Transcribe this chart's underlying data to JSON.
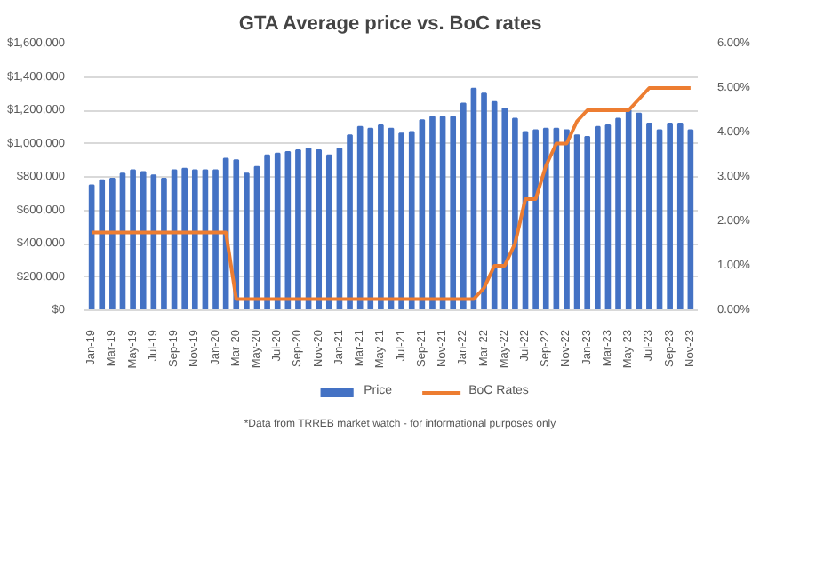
{
  "chart_data": {
    "type": "bar",
    "title": "GTA Average price vs. BoC rates",
    "categories": [
      "Jan-19",
      null,
      "Mar-19",
      null,
      "May-19",
      null,
      "Jul-19",
      null,
      "Sep-19",
      null,
      "Nov-19",
      null,
      "Jan-20",
      null,
      "Mar-20",
      null,
      "May-20",
      null,
      "Jul-20",
      null,
      "Sep-20",
      null,
      "Nov-20",
      null,
      "Jan-21",
      null,
      "Mar-21",
      null,
      "May-21",
      null,
      "Jul-21",
      null,
      "Sep-21",
      null,
      "Nov-21",
      null,
      "Jan-22",
      null,
      "Mar-22",
      null,
      "May-22",
      null,
      "Jul-22",
      null,
      "Sep-22",
      null,
      "Nov-22",
      null,
      "Jan-23",
      null,
      "Mar-23",
      null,
      "May-23",
      null,
      "Jul-23",
      null,
      "Sep-23",
      null,
      "Nov-23"
    ],
    "series": [
      {
        "name": "Price",
        "color": "#4472c4",
        "values": [
          750000,
          780000,
          790000,
          820000,
          840000,
          830000,
          810000,
          790000,
          840000,
          850000,
          840000,
          840000,
          840000,
          910000,
          900000,
          820000,
          860000,
          930000,
          940000,
          950000,
          960000,
          970000,
          960000,
          930000,
          970000,
          1050000,
          1100000,
          1090000,
          1110000,
          1090000,
          1060000,
          1070000,
          1140000,
          1160000,
          1160000,
          1160000,
          1240000,
          1330000,
          1300000,
          1250000,
          1210000,
          1150000,
          1070000,
          1080000,
          1090000,
          1090000,
          1080000,
          1050000,
          1040000,
          1100000,
          1110000,
          1150000,
          1200000,
          1180000,
          1120000,
          1080000,
          1120000,
          1120000,
          1080000
        ]
      },
      {
        "name": "BoC Rates",
        "type": "line",
        "axis": "y2",
        "color": "#ed7d31",
        "values": [
          1.75,
          1.75,
          1.75,
          1.75,
          1.75,
          1.75,
          1.75,
          1.75,
          1.75,
          1.75,
          1.75,
          1.75,
          1.75,
          1.75,
          0.25,
          0.25,
          0.25,
          0.25,
          0.25,
          0.25,
          0.25,
          0.25,
          0.25,
          0.25,
          0.25,
          0.25,
          0.25,
          0.25,
          0.25,
          0.25,
          0.25,
          0.25,
          0.25,
          0.25,
          0.25,
          0.25,
          0.25,
          0.25,
          0.5,
          1.0,
          1.0,
          1.5,
          2.5,
          2.5,
          3.25,
          3.75,
          3.75,
          4.25,
          4.5,
          4.5,
          4.5,
          4.5,
          4.5,
          4.75,
          5.0,
          5.0,
          5.0,
          5.0,
          5.0
        ]
      }
    ],
    "ylim": [
      0,
      1600000
    ],
    "yticks": [
      {
        "value": 0,
        "label": "$0"
      },
      {
        "value": 200000,
        "label": "$200,000"
      },
      {
        "value": 400000,
        "label": "$400,000"
      },
      {
        "value": 600000,
        "label": "$600,000"
      },
      {
        "value": 800000,
        "label": "$800,000"
      },
      {
        "value": 1000000,
        "label": "$1,000,000"
      },
      {
        "value": 1200000,
        "label": "$1,200,000"
      },
      {
        "value": 1400000,
        "label": "$1,400,000"
      },
      {
        "value": 1600000,
        "label": "$1,600,000"
      }
    ],
    "y2lim": [
      0,
      6
    ],
    "y2ticks": [
      {
        "value": 0,
        "label": "0.00%"
      },
      {
        "value": 1,
        "label": "1.00%"
      },
      {
        "value": 2,
        "label": "2.00%"
      },
      {
        "value": 3,
        "label": "3.00%"
      },
      {
        "value": 4,
        "label": "4.00%"
      },
      {
        "value": 5,
        "label": "5.00%"
      },
      {
        "value": 6,
        "label": "6.00%"
      }
    ],
    "grid": "y",
    "legend": "bottom",
    "line_style": "solid",
    "annotations": [
      "*Data from TRREB market watch - for informational purposes only"
    ]
  }
}
